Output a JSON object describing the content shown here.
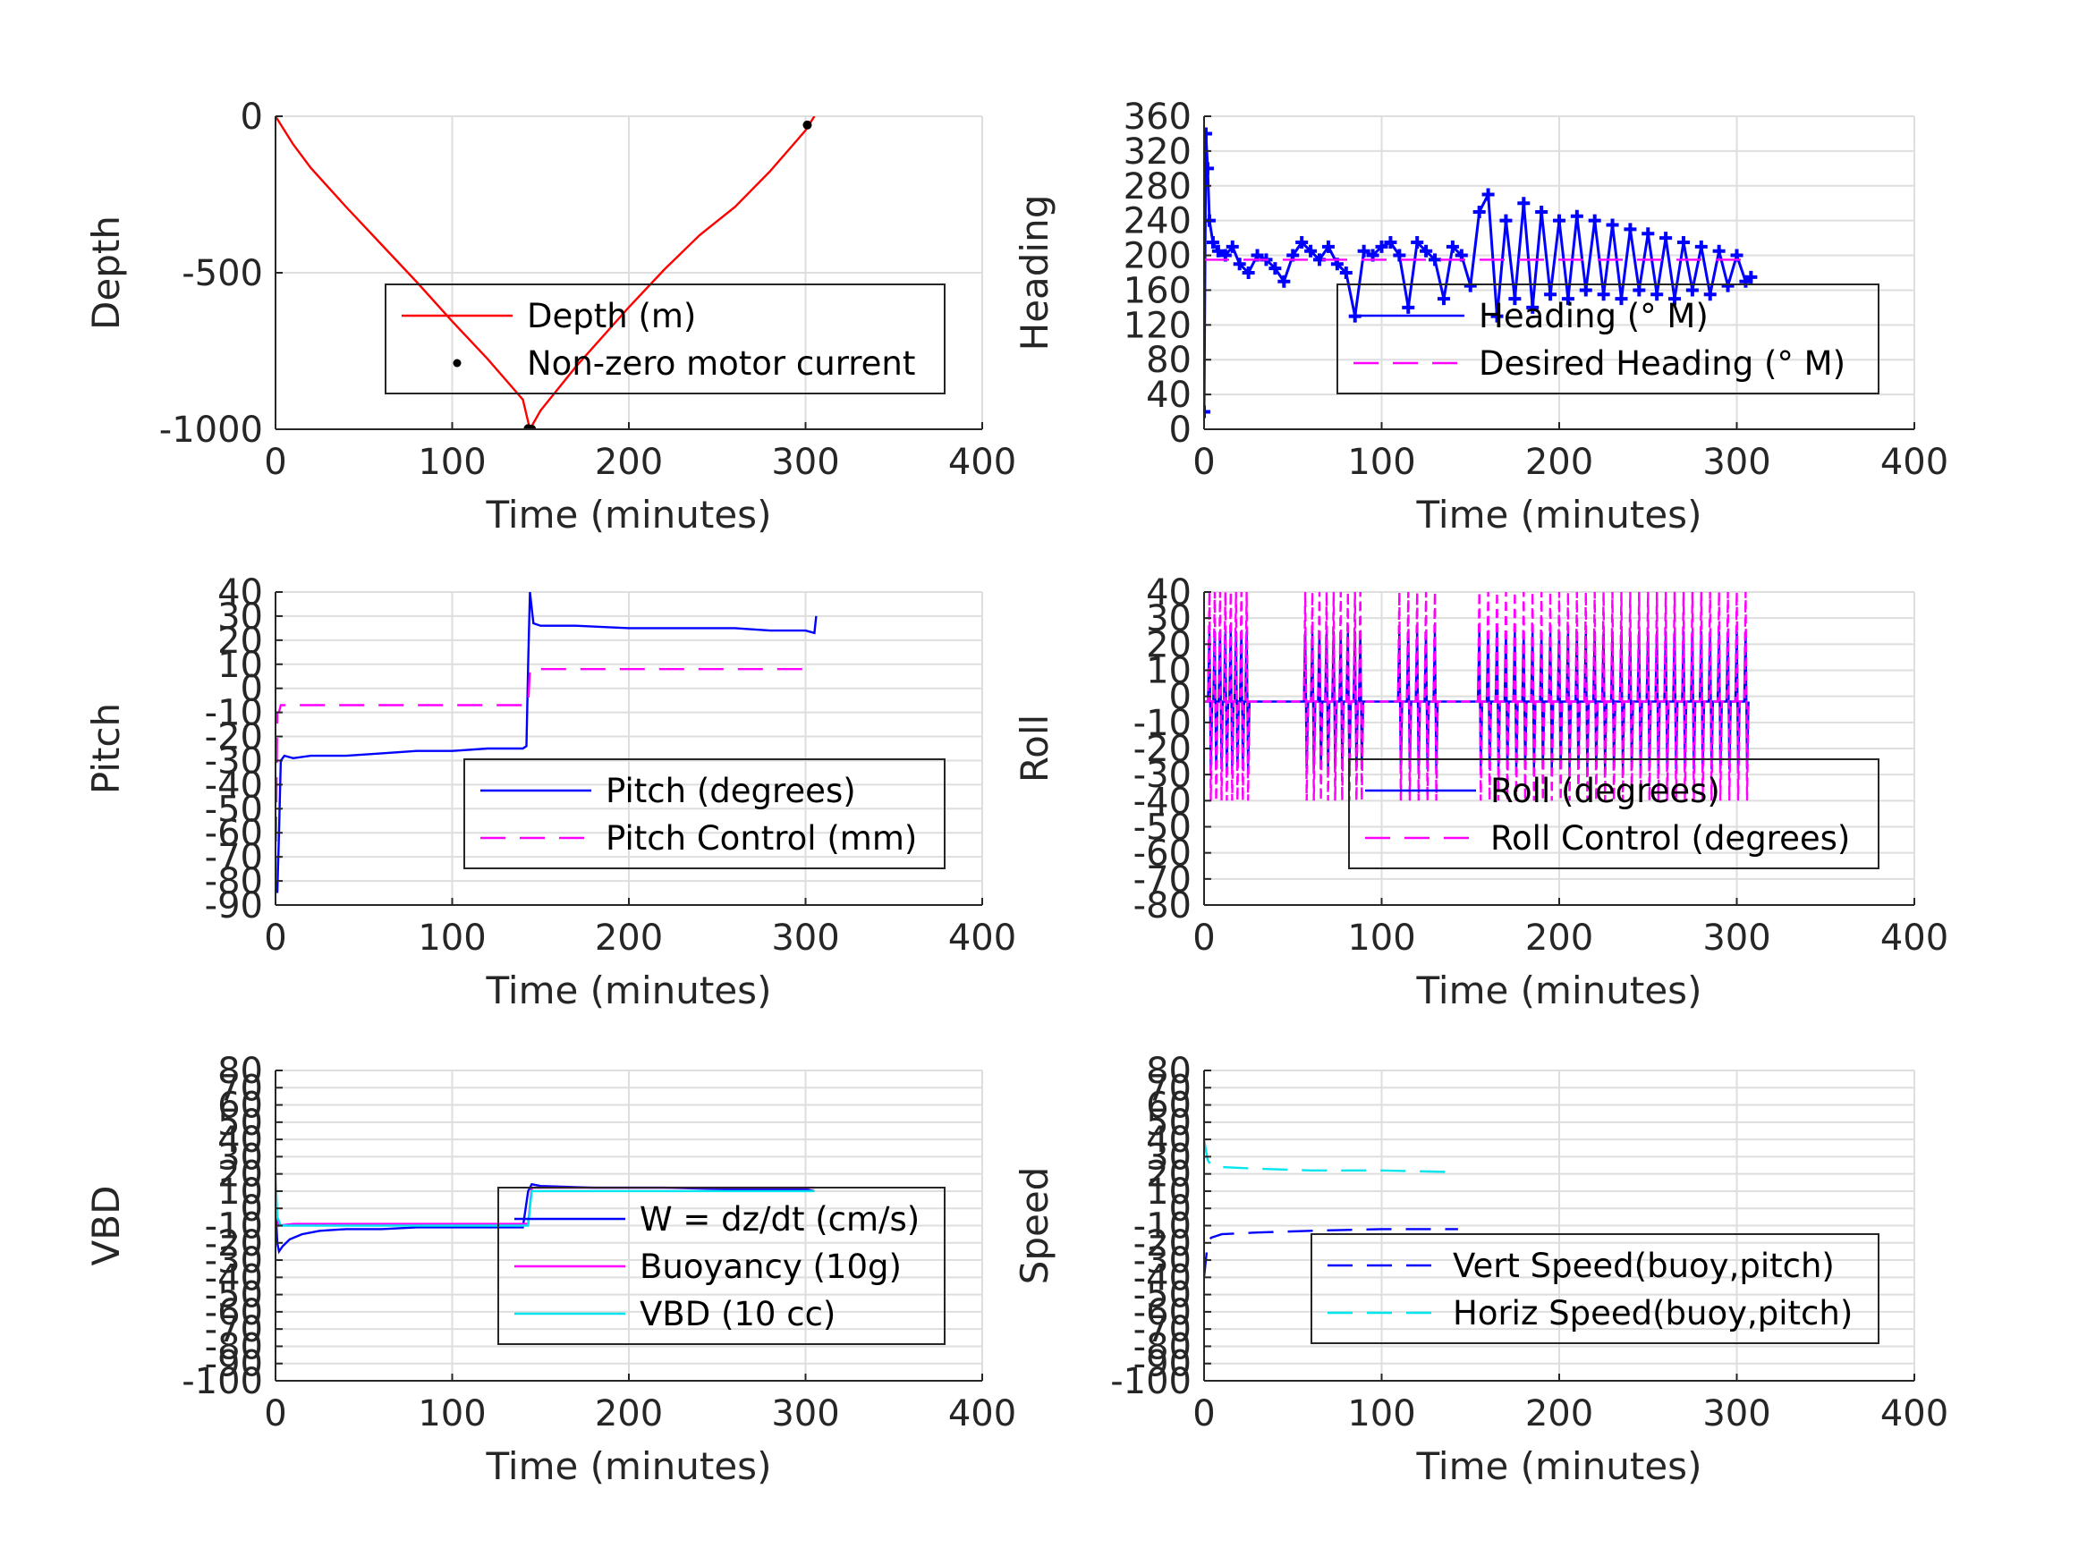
{
  "chart_data": [
    {
      "type": "line",
      "xlabel": "Time (minutes)",
      "ylabel": "Depth",
      "xlim": [
        0,
        400
      ],
      "ylim": [
        -1000,
        0
      ],
      "xticks": [
        "0",
        "100",
        "200",
        "300",
        "400"
      ],
      "yticks": [
        "0",
        "-500",
        "-1000"
      ],
      "ytick_values": [
        0,
        -500,
        -1000
      ],
      "grid": true,
      "legend_position": "center-right",
      "series": [
        {
          "name": "Depth (m)",
          "color": "#ff0000",
          "style": "solid",
          "x": [
            0,
            5,
            10,
            20,
            40,
            60,
            80,
            100,
            120,
            140,
            144,
            150,
            170,
            200,
            220,
            240,
            260,
            280,
            300,
            305
          ],
          "y": [
            0,
            -45,
            -90,
            -165,
            -290,
            -410,
            -530,
            -655,
            -775,
            -905,
            -1000,
            -940,
            -800,
            -610,
            -490,
            -380,
            -290,
            -175,
            -45,
            0
          ]
        },
        {
          "name": "Non-zero motor current",
          "color": "#000000",
          "style": "markers",
          "x": [
            143,
            145,
            301
          ],
          "y": [
            -998,
            -1000,
            -28
          ]
        }
      ]
    },
    {
      "type": "line",
      "xlabel": "Time (minutes)",
      "ylabel": "Heading",
      "xlim": [
        0,
        400
      ],
      "ylim": [
        0,
        360
      ],
      "xticks": [
        "0",
        "100",
        "200",
        "300",
        "400"
      ],
      "yticks": [
        "0",
        "40",
        "80",
        "120",
        "160",
        "200",
        "240",
        "280",
        "320",
        "360"
      ],
      "ytick_values": [
        0,
        40,
        80,
        120,
        160,
        200,
        240,
        280,
        320,
        360
      ],
      "grid": true,
      "legend_position": "center-right",
      "series": [
        {
          "name": "Heading (° M)",
          "color": "#0000ff",
          "style": "plus-markers",
          "x": [
            0,
            1,
            2,
            3,
            5,
            8,
            12,
            16,
            20,
            25,
            30,
            35,
            40,
            45,
            50,
            55,
            60,
            65,
            70,
            75,
            80,
            85,
            90,
            95,
            100,
            105,
            110,
            115,
            120,
            125,
            130,
            135,
            140,
            145,
            150,
            155,
            160,
            165,
            170,
            175,
            180,
            185,
            190,
            195,
            200,
            205,
            210,
            215,
            220,
            225,
            230,
            235,
            240,
            245,
            250,
            255,
            260,
            265,
            270,
            275,
            280,
            285,
            290,
            295,
            300,
            305,
            308
          ],
          "y": [
            20,
            340,
            300,
            240,
            215,
            205,
            200,
            210,
            190,
            180,
            200,
            195,
            185,
            170,
            200,
            215,
            205,
            195,
            210,
            190,
            180,
            130,
            205,
            200,
            210,
            215,
            200,
            140,
            215,
            205,
            195,
            150,
            210,
            200,
            165,
            250,
            270,
            130,
            240,
            150,
            260,
            140,
            250,
            155,
            240,
            150,
            245,
            160,
            240,
            155,
            235,
            150,
            230,
            160,
            225,
            155,
            220,
            150,
            215,
            160,
            210,
            155,
            205,
            165,
            200,
            170,
            175
          ]
        },
        {
          "name": "Desired Heading (° M)",
          "color": "#ff00ff",
          "style": "dashed",
          "x": [
            0,
            308
          ],
          "y": [
            195,
            195
          ]
        }
      ]
    },
    {
      "type": "line",
      "xlabel": "Time (minutes)",
      "ylabel": "Pitch",
      "xlim": [
        0,
        400
      ],
      "ylim": [
        -90,
        40
      ],
      "xticks": [
        "0",
        "100",
        "200",
        "300",
        "400"
      ],
      "yticks": [
        "40",
        "30",
        "20",
        "10",
        "0",
        "-10",
        "-20",
        "-30",
        "-40",
        "-50",
        "-60",
        "-70",
        "-80",
        "-90"
      ],
      "ytick_values": [
        40,
        30,
        20,
        10,
        0,
        -10,
        -20,
        -30,
        -40,
        -50,
        -60,
        -70,
        -80,
        -90
      ],
      "grid": true,
      "legend_position": "center-right",
      "series": [
        {
          "name": "Pitch (degrees)",
          "color": "#0000ff",
          "style": "solid",
          "x": [
            0,
            1,
            2,
            3,
            5,
            10,
            20,
            40,
            60,
            80,
            100,
            120,
            140,
            142,
            143,
            144,
            146,
            150,
            170,
            200,
            230,
            260,
            280,
            300,
            305,
            306
          ],
          "y": [
            -80,
            -85,
            -60,
            -30,
            -28,
            -29,
            -28,
            -28,
            -27,
            -26,
            -26,
            -25,
            -25,
            -24,
            10,
            40,
            27,
            26,
            26,
            25,
            25,
            25,
            24,
            24,
            23,
            30
          ]
        },
        {
          "name": "Pitch Control (mm)",
          "color": "#ff00ff",
          "style": "dashed",
          "x": [
            0,
            1,
            2,
            3,
            30,
            60,
            100,
            140,
            143,
            144,
            146,
            180,
            220,
            260,
            300,
            306
          ],
          "y": [
            -80,
            -10,
            -10,
            -7,
            -7,
            -7,
            -7,
            -7,
            -7,
            8,
            8,
            8,
            8,
            8,
            8,
            8
          ]
        }
      ]
    },
    {
      "type": "line",
      "xlabel": "Time (minutes)",
      "ylabel": "Roll",
      "xlim": [
        0,
        400
      ],
      "ylim": [
        -80,
        40
      ],
      "xticks": [
        "0",
        "100",
        "200",
        "300",
        "400"
      ],
      "yticks": [
        "40",
        "30",
        "20",
        "10",
        "0",
        "-10",
        "-20",
        "-30",
        "-40",
        "-50",
        "-60",
        "-70",
        "-80"
      ],
      "ytick_values": [
        40,
        30,
        20,
        10,
        0,
        -10,
        -20,
        -30,
        -40,
        -50,
        -60,
        -70,
        -80
      ],
      "grid": true,
      "legend_position": "center-right",
      "series": [
        {
          "name": "Roll (degrees)",
          "color": "#0000ff",
          "style": "solid",
          "spike_x": [
            3,
            6,
            9,
            12,
            15,
            18,
            21,
            24,
            57,
            61,
            65,
            69,
            73,
            77,
            81,
            85,
            88,
            110,
            115,
            120,
            125,
            130,
            155,
            160,
            165,
            170,
            175,
            180,
            185,
            190,
            195,
            200,
            205,
            210,
            215,
            220,
            225,
            230,
            235,
            240,
            245,
            250,
            255,
            260,
            265,
            270,
            275,
            280,
            285,
            290,
            295,
            300,
            305
          ],
          "baseline": -2,
          "high": 25,
          "low": -28
        },
        {
          "name": "Roll Control (degrees)",
          "color": "#ff00ff",
          "style": "dashed",
          "spike_x": [
            3,
            6,
            9,
            12,
            15,
            18,
            21,
            24,
            57,
            61,
            65,
            69,
            73,
            77,
            81,
            85,
            88,
            110,
            115,
            120,
            125,
            130,
            155,
            160,
            165,
            170,
            175,
            180,
            185,
            190,
            195,
            200,
            205,
            210,
            215,
            220,
            225,
            230,
            235,
            240,
            245,
            250,
            255,
            260,
            265,
            270,
            275,
            280,
            285,
            290,
            295,
            300,
            305
          ],
          "baseline": -2,
          "high": 40,
          "low": -40
        }
      ]
    },
    {
      "type": "line",
      "xlabel": "Time (minutes)",
      "ylabel": "VBD",
      "xlim": [
        0,
        400
      ],
      "ylim": [
        -100,
        80
      ],
      "xticks": [
        "0",
        "100",
        "200",
        "300",
        "400"
      ],
      "yticks": [
        "80",
        "70",
        "60",
        "50",
        "40",
        "30",
        "20",
        "10",
        "0",
        "-10",
        "-20",
        "-30",
        "-40",
        "-50",
        "-60",
        "-70",
        "-80",
        "-90",
        "-100"
      ],
      "ytick_values": [
        80,
        70,
        60,
        50,
        40,
        30,
        20,
        10,
        0,
        -10,
        -20,
        -30,
        -40,
        -50,
        -60,
        -70,
        -80,
        -90,
        -100
      ],
      "grid": true,
      "legend_position": "center-right",
      "series": [
        {
          "name": "W = dz/dt (cm/s)",
          "color": "#0000ff",
          "style": "solid",
          "x": [
            0,
            1,
            2,
            4,
            8,
            15,
            25,
            40,
            60,
            80,
            100,
            120,
            140,
            143,
            145,
            150,
            180,
            220,
            260,
            300,
            305
          ],
          "y": [
            0,
            -20,
            -25,
            -22,
            -18,
            -15,
            -13,
            -12,
            -12,
            -11,
            -11,
            -11,
            -11,
            10,
            14,
            13,
            12,
            12,
            11,
            11,
            10
          ]
        },
        {
          "name": "Buoyancy (10g)",
          "color": "#ff00ff",
          "style": "solid",
          "x": [
            0,
            2,
            10,
            50,
            100,
            143,
            145,
            200,
            305
          ],
          "y": [
            0,
            -10,
            -9,
            -9,
            -9,
            -9,
            12,
            12,
            12
          ]
        },
        {
          "name": "VBD (10 cc)",
          "color": "#00e5ee",
          "style": "solid",
          "x": [
            0,
            1,
            3,
            20,
            60,
            100,
            143,
            145,
            200,
            305
          ],
          "y": [
            20,
            -5,
            -10,
            -10,
            -10,
            -10,
            -10,
            10,
            10,
            10
          ]
        }
      ]
    },
    {
      "type": "line",
      "xlabel": "Time (minutes)",
      "ylabel": "Speed",
      "xlim": [
        0,
        400
      ],
      "ylim": [
        -100,
        80
      ],
      "xticks": [
        "0",
        "100",
        "200",
        "300",
        "400"
      ],
      "yticks": [
        "80",
        "70",
        "60",
        "50",
        "40",
        "30",
        "20",
        "10",
        "0",
        "-10",
        "-20",
        "-30",
        "-40",
        "-50",
        "-60",
        "-70",
        "-80",
        "-90",
        "-100"
      ],
      "ytick_values": [
        80,
        70,
        60,
        50,
        40,
        30,
        20,
        10,
        0,
        -10,
        -20,
        -30,
        -40,
        -50,
        -60,
        -70,
        -80,
        -90,
        -100
      ],
      "grid": true,
      "legend_position": "bottom-right",
      "series": [
        {
          "name": "Vert Speed(buoy,pitch)",
          "color": "#0000ff",
          "style": "dashed",
          "x": [
            0,
            2,
            4,
            10,
            30,
            60,
            100,
            143
          ],
          "y": [
            -40,
            -20,
            -17,
            -15,
            -14,
            -13,
            -12,
            -12
          ]
        },
        {
          "name": "Horiz Speed(buoy,pitch)",
          "color": "#00e5ee",
          "style": "dashed",
          "x": [
            0,
            2,
            4,
            10,
            30,
            60,
            100,
            143
          ],
          "y": [
            40,
            28,
            25,
            24,
            23,
            22,
            22,
            21
          ]
        }
      ]
    }
  ]
}
